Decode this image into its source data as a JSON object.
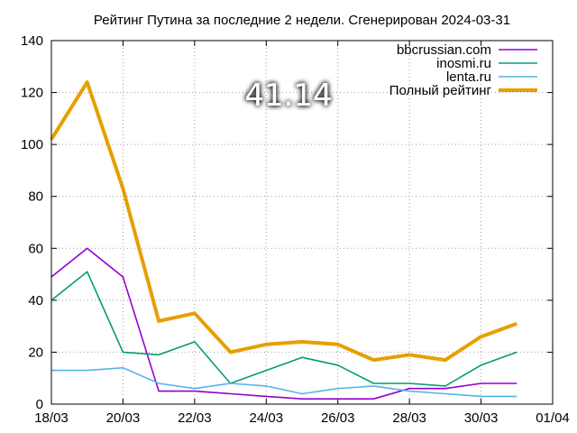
{
  "chart_data": {
    "type": "line",
    "title": "Рейтинг Путина за последние 2 недели. Сгенерирован 2024-03-31",
    "big_label": "41.14",
    "xlabel": "",
    "ylabel": "",
    "ylim": [
      0,
      140
    ],
    "yticks": [
      0,
      20,
      40,
      60,
      80,
      100,
      120,
      140
    ],
    "xlim": [
      "2024-03-18",
      "2024-04-01"
    ],
    "xticks": [
      {
        "date": "2024-03-18",
        "label": "18/03"
      },
      {
        "date": "2024-03-20",
        "label": "20/03"
      },
      {
        "date": "2024-03-22",
        "label": "22/03"
      },
      {
        "date": "2024-03-24",
        "label": "24/03"
      },
      {
        "date": "2024-03-26",
        "label": "26/03"
      },
      {
        "date": "2024-03-28",
        "label": "28/03"
      },
      {
        "date": "2024-03-30",
        "label": "30/03"
      },
      {
        "date": "2024-04-01",
        "label": "01/04"
      }
    ],
    "grid": true,
    "legend_position": "top-right",
    "x": [
      "2024-03-18",
      "2024-03-19",
      "2024-03-20",
      "2024-03-21",
      "2024-03-22",
      "2024-03-23",
      "2024-03-24",
      "2024-03-25",
      "2024-03-26",
      "2024-03-27",
      "2024-03-28",
      "2024-03-29",
      "2024-03-30",
      "2024-03-31"
    ],
    "series": [
      {
        "name": "bbcrussian.com",
        "color": "#9400d3",
        "values": [
          49,
          60,
          49,
          5,
          5,
          4,
          3,
          2,
          2,
          2,
          6,
          6,
          8,
          8
        ]
      },
      {
        "name": "inosmi.ru",
        "color": "#009e73",
        "values": [
          40,
          51,
          20,
          19,
          24,
          8,
          13,
          18,
          15,
          8,
          8,
          7,
          15,
          20
        ]
      },
      {
        "name": "lenta.ru",
        "color": "#56b4e9",
        "values": [
          13,
          13,
          14,
          8,
          6,
          8,
          7,
          4,
          6,
          7,
          5,
          4,
          3,
          3
        ]
      },
      {
        "name": "Полный рейтинг",
        "color": "#e69f00",
        "values": [
          102,
          124,
          83,
          32,
          35,
          20,
          23,
          24,
          23,
          17,
          19,
          17,
          26,
          31
        ],
        "bold": true
      }
    ]
  }
}
